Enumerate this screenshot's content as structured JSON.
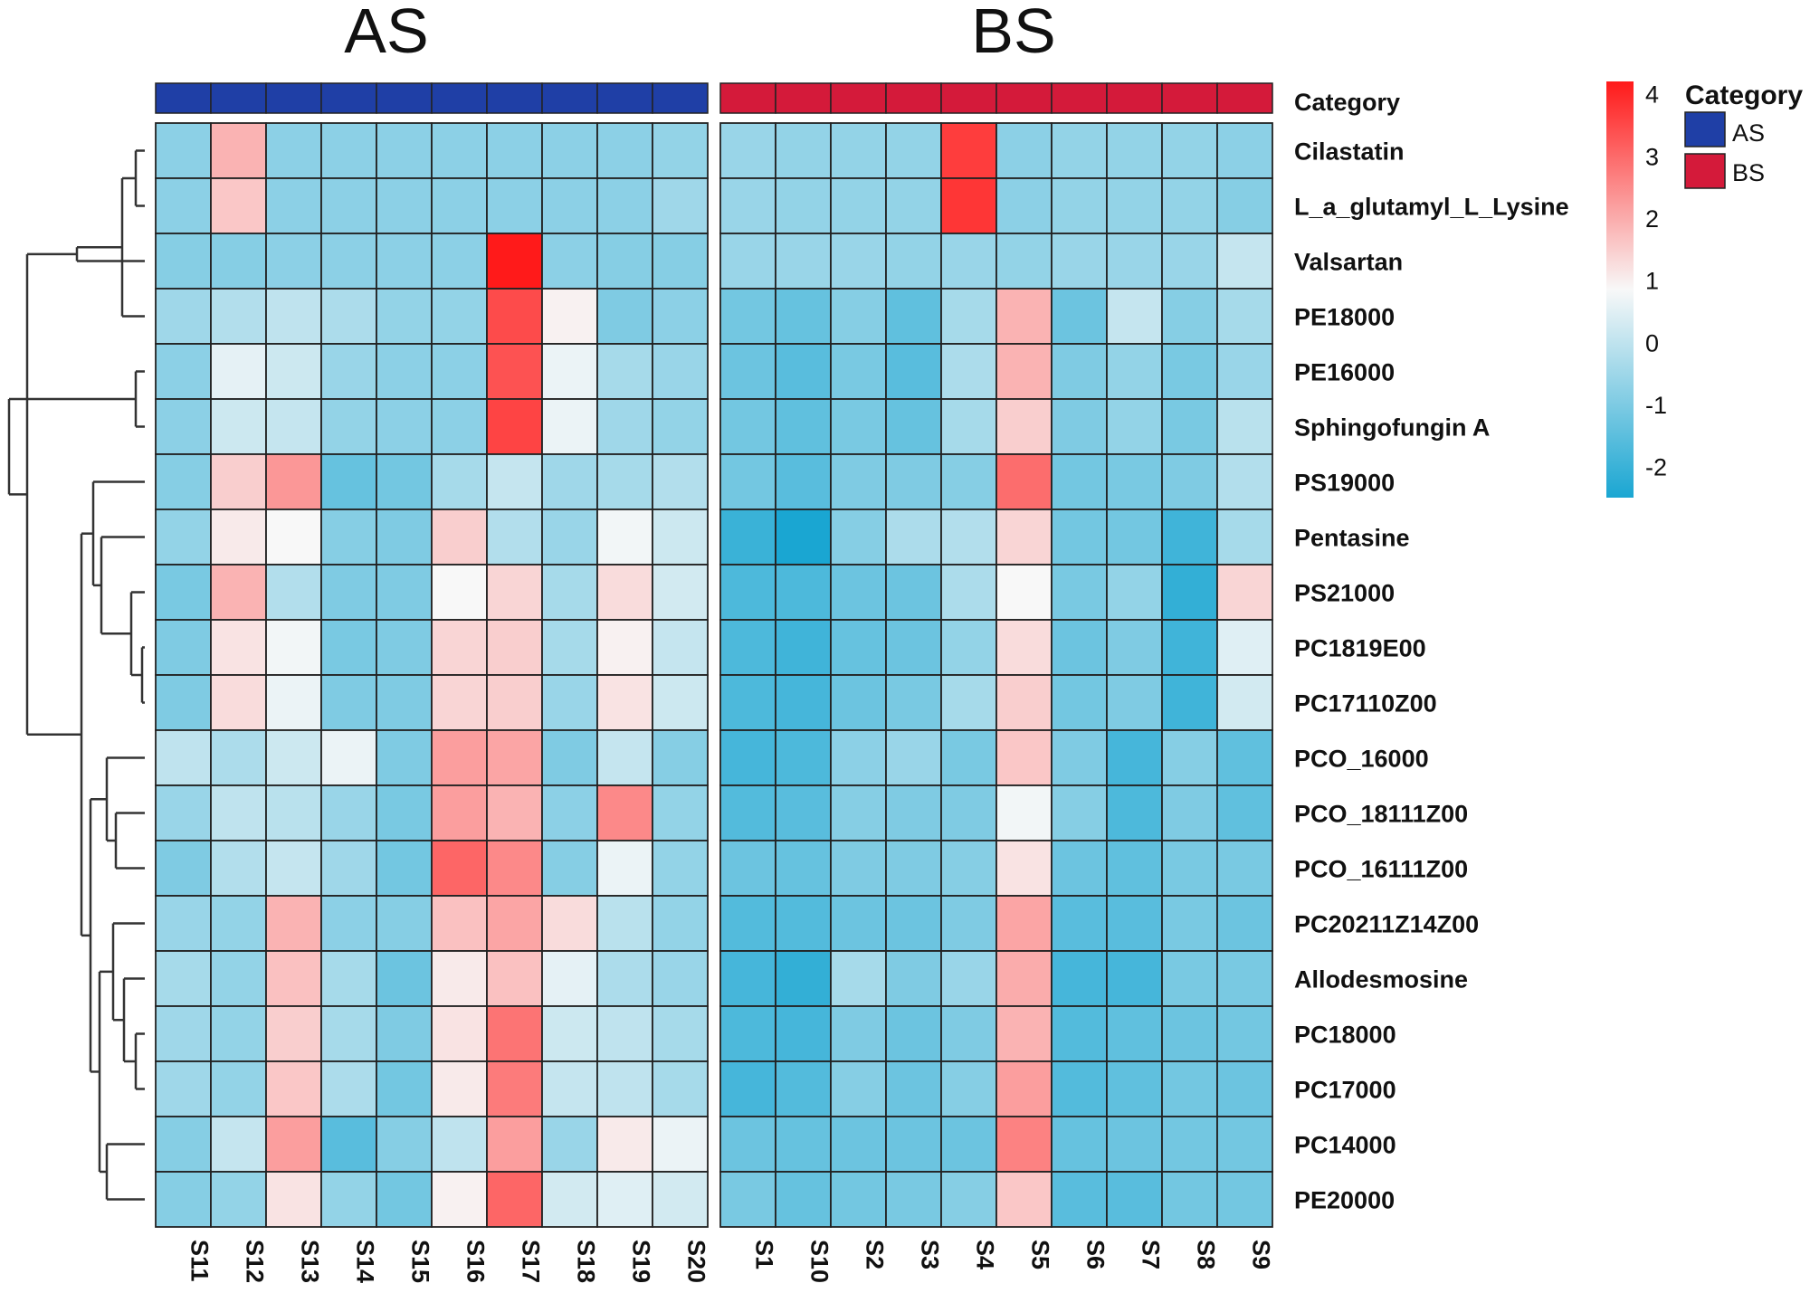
{
  "chart_data": {
    "type": "heatmap",
    "title": "",
    "groups": [
      {
        "name": "AS",
        "columns": [
          "S11",
          "S12",
          "S13",
          "S14",
          "S15",
          "S16",
          "S17",
          "S18",
          "S19",
          "S20"
        ],
        "color": "#1f3fa6"
      },
      {
        "name": "BS",
        "columns": [
          "S1",
          "S10",
          "S2",
          "S3",
          "S4",
          "S5",
          "S6",
          "S7",
          "S8",
          "S9"
        ],
        "color": "#d41a3a"
      }
    ],
    "annotation_row_label": "Category",
    "rows": [
      "Cilastatin",
      "L_a_glutamyl_L_Lysine",
      "Valsartan",
      "PE18000",
      "PE16000",
      "Sphingofungin A",
      "PS19000",
      "Pentasine",
      "PS21000",
      "PC1819E00",
      "PC17110Z00",
      "PCO_16000",
      "PCO_18111Z00",
      "PCO_16111Z00",
      "PC20211Z14Z00",
      "Allodesmosine",
      "PC18000",
      "PC17000",
      "PC14000",
      "PE20000"
    ],
    "values": [
      [
        -0.7,
        2.0,
        -0.7,
        -0.7,
        -0.7,
        -0.7,
        -0.7,
        -0.7,
        -0.7,
        -0.6,
        -0.5,
        -0.6,
        -0.6,
        -0.6,
        3.7,
        -0.7,
        -0.6,
        -0.6,
        -0.6,
        -0.7
      ],
      [
        -0.7,
        1.7,
        -0.7,
        -0.7,
        -0.7,
        -0.7,
        -0.7,
        -0.7,
        -0.7,
        -0.4,
        -0.5,
        -0.6,
        -0.6,
        -0.6,
        3.8,
        -0.7,
        -0.6,
        -0.6,
        -0.6,
        -0.8
      ],
      [
        -0.8,
        -0.8,
        -0.7,
        -0.7,
        -0.7,
        -0.7,
        4.2,
        -0.7,
        -0.8,
        -0.8,
        -0.5,
        -0.5,
        -0.5,
        -0.6,
        -0.5,
        -0.6,
        -0.5,
        -0.5,
        -0.5,
        0.2
      ],
      [
        -0.4,
        -0.1,
        0.1,
        -0.2,
        -0.6,
        -0.6,
        3.5,
        1.1,
        -0.9,
        -0.7,
        -1.1,
        -1.3,
        -0.8,
        -1.4,
        -0.3,
        2.0,
        -1.2,
        0.2,
        -0.8,
        -0.3
      ],
      [
        -0.7,
        0.7,
        0.3,
        -0.5,
        -0.7,
        -0.7,
        3.4,
        0.8,
        -0.3,
        -0.5,
        -1.2,
        -1.5,
        -1.0,
        -1.5,
        -0.2,
        2.0,
        -0.9,
        -0.6,
        -1.0,
        -0.5
      ],
      [
        -0.7,
        0.3,
        0.2,
        -0.6,
        -0.7,
        -0.7,
        3.6,
        0.8,
        -0.4,
        -0.6,
        -1.1,
        -1.4,
        -1.0,
        -1.3,
        -0.3,
        1.6,
        -0.9,
        -0.6,
        -1.0,
        0.0
      ],
      [
        -0.8,
        1.6,
        2.4,
        -1.3,
        -1.1,
        -0.3,
        0.2,
        -0.4,
        -0.3,
        -0.1,
        -1.1,
        -1.5,
        -0.9,
        -0.9,
        -0.8,
        3.0,
        -1.1,
        -1.0,
        -0.9,
        -0.1
      ],
      [
        -0.6,
        1.2,
        1.0,
        -0.8,
        -0.9,
        1.6,
        -0.1,
        -0.5,
        0.9,
        0.3,
        -2.0,
        -2.5,
        -0.8,
        -0.2,
        -0.1,
        1.5,
        -1.1,
        -1.1,
        -1.9,
        -0.3
      ],
      [
        -1.0,
        2.0,
        -0.1,
        -0.9,
        -0.9,
        1.0,
        1.5,
        -0.3,
        1.4,
        0.4,
        -1.7,
        -1.7,
        -1.2,
        -1.2,
        -0.2,
        1.0,
        -1.0,
        -0.6,
        -2.1,
        1.5
      ],
      [
        -0.9,
        1.3,
        0.9,
        -1.0,
        -0.9,
        1.5,
        1.6,
        -0.3,
        1.1,
        0.2,
        -1.7,
        -1.9,
        -1.3,
        -1.2,
        -0.6,
        1.4,
        -1.2,
        -0.9,
        -1.9,
        0.6
      ],
      [
        -0.9,
        1.4,
        0.8,
        -0.9,
        -0.9,
        1.5,
        1.6,
        -0.5,
        1.3,
        0.3,
        -1.7,
        -1.8,
        -1.2,
        -1.0,
        -0.3,
        1.6,
        -1.1,
        -0.9,
        -1.9,
        0.4
      ],
      [
        0.1,
        -0.2,
        0.3,
        0.8,
        -0.9,
        2.3,
        2.2,
        -0.9,
        0.2,
        -0.8,
        -1.8,
        -1.7,
        -0.7,
        -0.5,
        -1.0,
        1.7,
        -0.9,
        -1.8,
        -0.8,
        -1.4
      ],
      [
        -0.5,
        0.1,
        0.0,
        -0.5,
        -1.0,
        2.3,
        2.0,
        -0.7,
        2.6,
        -0.6,
        -1.6,
        -1.5,
        -0.8,
        -0.9,
        -0.9,
        0.9,
        -0.8,
        -1.7,
        -0.9,
        -1.4
      ],
      [
        -0.9,
        -0.1,
        0.2,
        -0.4,
        -1.1,
        3.1,
        2.6,
        -0.8,
        0.8,
        -0.6,
        -1.2,
        -1.3,
        -0.9,
        -0.9,
        -0.8,
        1.3,
        -1.2,
        -1.4,
        -1.0,
        -1.0
      ],
      [
        -0.5,
        -0.6,
        2.0,
        -0.7,
        -0.8,
        1.8,
        2.2,
        1.4,
        0.0,
        -0.6,
        -1.6,
        -1.6,
        -1.2,
        -1.2,
        -0.9,
        2.2,
        -1.5,
        -1.5,
        -1.0,
        -1.2
      ],
      [
        -0.3,
        -0.6,
        1.8,
        -0.3,
        -1.2,
        1.2,
        1.8,
        0.7,
        -0.2,
        -0.5,
        -1.8,
        -2.1,
        -0.3,
        -0.9,
        -0.5,
        2.1,
        -1.8,
        -1.8,
        -1.0,
        -1.0
      ],
      [
        -0.4,
        -0.6,
        1.6,
        -0.3,
        -0.9,
        1.3,
        2.9,
        0.3,
        0.1,
        -0.3,
        -1.7,
        -1.8,
        -0.9,
        -1.2,
        -0.9,
        2.0,
        -1.6,
        -1.4,
        -1.2,
        -1.1
      ],
      [
        -0.4,
        -0.6,
        1.7,
        -0.2,
        -1.1,
        1.2,
        2.8,
        0.2,
        0.1,
        -0.3,
        -1.8,
        -1.6,
        -0.8,
        -1.2,
        -0.8,
        2.3,
        -1.6,
        -1.4,
        -1.1,
        -1.2
      ],
      [
        -0.8,
        0.2,
        2.3,
        -1.5,
        -0.8,
        0.1,
        2.3,
        -0.5,
        1.2,
        0.8,
        -1.2,
        -1.3,
        -1.2,
        -1.2,
        -1.2,
        2.7,
        -1.3,
        -1.2,
        -1.1,
        -1.1
      ],
      [
        -0.8,
        -0.6,
        1.3,
        -0.6,
        -1.1,
        1.1,
        3.1,
        0.4,
        0.6,
        0.4,
        -1.0,
        -1.3,
        -1.1,
        -1.0,
        -0.8,
        1.7,
        -1.5,
        -1.5,
        -1.1,
        -1.1
      ]
    ],
    "color_scale": {
      "min": -2.5,
      "max": 4.2,
      "low_color": "#1aa6d2",
      "mid_value": 1,
      "mid_color": "#f8f8f8",
      "high_color": "#ff1a1a",
      "ticks": [
        4,
        3,
        2,
        1,
        0,
        -1,
        -2
      ],
      "tick_labels": [
        "4",
        "3",
        "2",
        "1",
        "0",
        "-1",
        "-2"
      ]
    },
    "legend": {
      "title": "Category",
      "items": [
        {
          "label": "AS",
          "color": "#1f3fa6"
        },
        {
          "label": "BS",
          "color": "#d41a3a"
        }
      ],
      "placement": "top-right"
    },
    "dendrogram": "row clustering tree on left"
  }
}
